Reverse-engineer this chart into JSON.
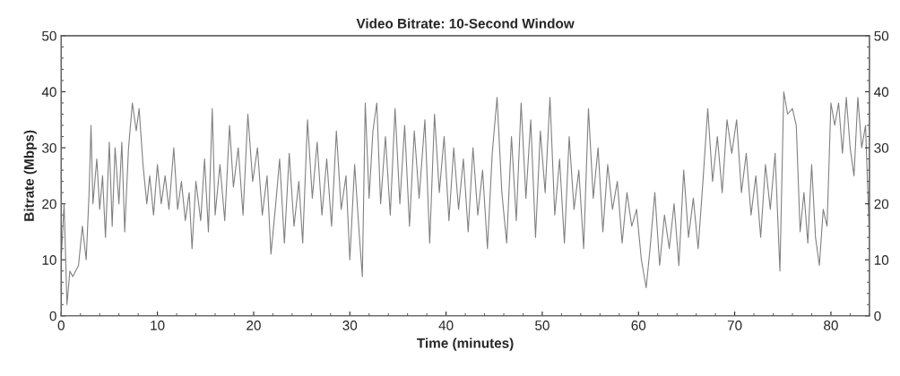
{
  "chart_data": {
    "type": "line",
    "title": "Video Bitrate: 10-Second Window",
    "xlabel": "Time (minutes)",
    "ylabel": "Bitrate (Mbps)",
    "xlim": [
      0,
      84
    ],
    "xticks": [
      0,
      10,
      20,
      30,
      40,
      50,
      60,
      70,
      80
    ],
    "ylim": [
      0,
      50
    ],
    "yticks": [
      0,
      10,
      20,
      30,
      40,
      50
    ],
    "y2lim": [
      0,
      50
    ],
    "y2ticks": [
      0,
      10,
      20,
      30,
      40,
      50
    ],
    "grid": false,
    "marker": "none",
    "line_style": "solid",
    "series": [
      {
        "color": "#808080",
        "x": [
          0,
          0.3,
          0.6,
          0.9,
          1.2,
          1.8,
          2.2,
          2.6,
          2.9,
          3.1,
          3.3,
          3.7,
          4.0,
          4.3,
          4.6,
          5.0,
          5.3,
          5.6,
          6.0,
          6.3,
          6.6,
          7.0,
          7.4,
          7.8,
          8.1,
          8.5,
          8.9,
          9.2,
          9.6,
          10.0,
          10.4,
          10.8,
          11.2,
          11.7,
          12.1,
          12.5,
          12.9,
          13.3,
          13.6,
          14.0,
          14.5,
          14.9,
          15.3,
          15.7,
          16.0,
          16.5,
          17,
          17.5,
          17.9,
          18.4,
          18.9,
          19.4,
          19.9,
          20.4,
          20.9,
          21.4,
          21.8,
          22.3,
          22.7,
          23.2,
          23.7,
          24.2,
          24.7,
          25.1,
          25.6,
          26.1,
          26.6,
          27.1,
          27.6,
          28.1,
          28.6,
          29.1,
          29.6,
          30.0,
          30.5,
          31.0,
          31.3,
          31.6,
          32.0,
          32.4,
          32.8,
          33.2,
          33.7,
          34.2,
          34.7,
          35.2,
          35.7,
          36.2,
          36.7,
          37.2,
          37.8,
          38.3,
          38.8,
          39.3,
          39.8,
          40.3,
          40.8,
          41.3,
          41.8,
          42.3,
          42.8,
          43.3,
          43.8,
          44.3,
          44.8,
          45.3,
          45.8,
          46.3,
          46.8,
          47.3,
          47.8,
          48.3,
          48.8,
          49.3,
          49.8,
          50.3,
          50.8,
          51.3,
          51.8,
          52.3,
          52.8,
          53.3,
          53.8,
          54.3,
          54.8,
          55.3,
          55.8,
          56.3,
          56.8,
          57.3,
          57.8,
          58.3,
          58.8,
          59.3,
          59.8,
          60.3,
          60.8,
          61.2,
          61.7,
          62.2,
          62.7,
          63.2,
          63.7,
          64.2,
          64.7,
          65.2,
          65.7,
          66.2,
          66.7,
          67.2,
          67.7,
          68.2,
          68.7,
          69.2,
          69.7,
          70.2,
          70.7,
          71.2,
          71.7,
          72.2,
          72.7,
          73.2,
          73.7,
          74.2,
          74.7,
          75.1,
          75.5,
          76.0,
          76.4,
          76.8,
          77.2,
          77.6,
          78.0,
          78.4,
          78.8,
          79.2,
          79.6,
          80.0,
          80.4,
          80.8,
          81.2,
          81.6,
          82.0,
          82.4,
          82.8,
          83.2,
          83.6,
          84
        ],
        "values": [
          10,
          20,
          2,
          8,
          7,
          9,
          16,
          10,
          22,
          34,
          20,
          28,
          19,
          25,
          14,
          31,
          16,
          30,
          20,
          31,
          15,
          30,
          38,
          33,
          37,
          27,
          20,
          25,
          18,
          27,
          20,
          25,
          19,
          30,
          19,
          24,
          17,
          22,
          12,
          24,
          17,
          28,
          15,
          37,
          18,
          27,
          17,
          34,
          23,
          30,
          18,
          36,
          24,
          30,
          18,
          25,
          11,
          20,
          28,
          13,
          29,
          16,
          24,
          13,
          35,
          21,
          31,
          18,
          28,
          16,
          33,
          19,
          25,
          10,
          27,
          14,
          7,
          38,
          21,
          33,
          38,
          20,
          32,
          18,
          37,
          20,
          34,
          16,
          33,
          21,
          35,
          13,
          36,
          22,
          32,
          17,
          30,
          19,
          28,
          15,
          30,
          18,
          26,
          12,
          29,
          39,
          22,
          13,
          32,
          17,
          38,
          21,
          35,
          14,
          33,
          22,
          39,
          18,
          28,
          13,
          32,
          19,
          26,
          12,
          37,
          21,
          30,
          15,
          27,
          19,
          24,
          13,
          22,
          16,
          19,
          10,
          5,
          12,
          22,
          9,
          18,
          12,
          20,
          9,
          26,
          14,
          21,
          12,
          24,
          37,
          24,
          32,
          22,
          35,
          29,
          35,
          22,
          29,
          18,
          25,
          14,
          27,
          19,
          29,
          8,
          40,
          36,
          37,
          34,
          15,
          22,
          13,
          27,
          14,
          9,
          19,
          16,
          38,
          34,
          38,
          29,
          39,
          30,
          25,
          39,
          30,
          34,
          14
        ]
      }
    ]
  }
}
